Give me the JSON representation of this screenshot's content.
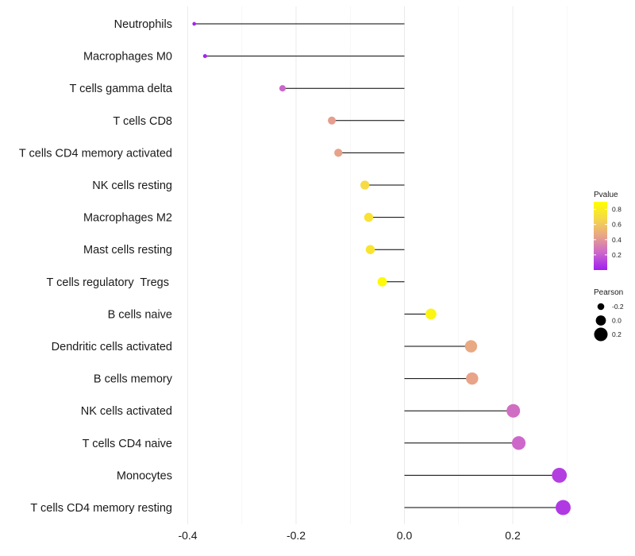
{
  "chart_data": {
    "type": "lollipop",
    "title": "",
    "xlabel": "",
    "ylabel": "",
    "xlim": [
      -0.4,
      0.3
    ],
    "xticks": [
      -0.4,
      -0.2,
      0.0,
      0.2
    ],
    "xtick_labels": [
      "-0.4",
      "-0.2",
      "0.0",
      "0.2"
    ],
    "grid": true,
    "legend_position": "right",
    "categories": [
      "Neutrophils",
      "Macrophages M0",
      "T cells gamma delta",
      "T cells CD8",
      "T cells CD4 memory activated",
      "NK cells resting",
      "Macrophages M2",
      "Mast cells resting",
      "T cells regulatory  Tregs ",
      "B cells naive",
      "Dendritic cells activated",
      "B cells memory",
      "NK cells activated",
      "T cells CD4 naive",
      "Monocytes",
      "T cells CD4 memory resting"
    ],
    "pearson": [
      -0.388,
      -0.368,
      -0.225,
      -0.134,
      -0.122,
      -0.073,
      -0.066,
      -0.063,
      -0.041,
      0.049,
      0.123,
      0.125,
      0.201,
      0.211,
      0.286,
      0.293
    ],
    "pvalue": [
      0.01,
      0.02,
      0.25,
      0.52,
      0.54,
      0.76,
      0.79,
      0.8,
      0.88,
      0.86,
      0.57,
      0.55,
      0.29,
      0.26,
      0.11,
      0.09
    ],
    "color_legend": {
      "title": "Pvalue",
      "ticks": [
        0.8,
        0.6,
        0.4,
        0.2
      ],
      "tick_labels": [
        "0.8",
        "0.6",
        "0.4",
        "0.2"
      ],
      "range": [
        0.0,
        0.9
      ],
      "colors": [
        "#a020f0",
        "#cc66cc",
        "#e8a488",
        "#f5d84a",
        "#ffff00"
      ]
    },
    "size_legend": {
      "title": "Pearson",
      "values": [
        -0.2,
        0.0,
        0.2
      ],
      "labels": [
        "-0.2",
        "0.0",
        "0.2"
      ]
    }
  }
}
